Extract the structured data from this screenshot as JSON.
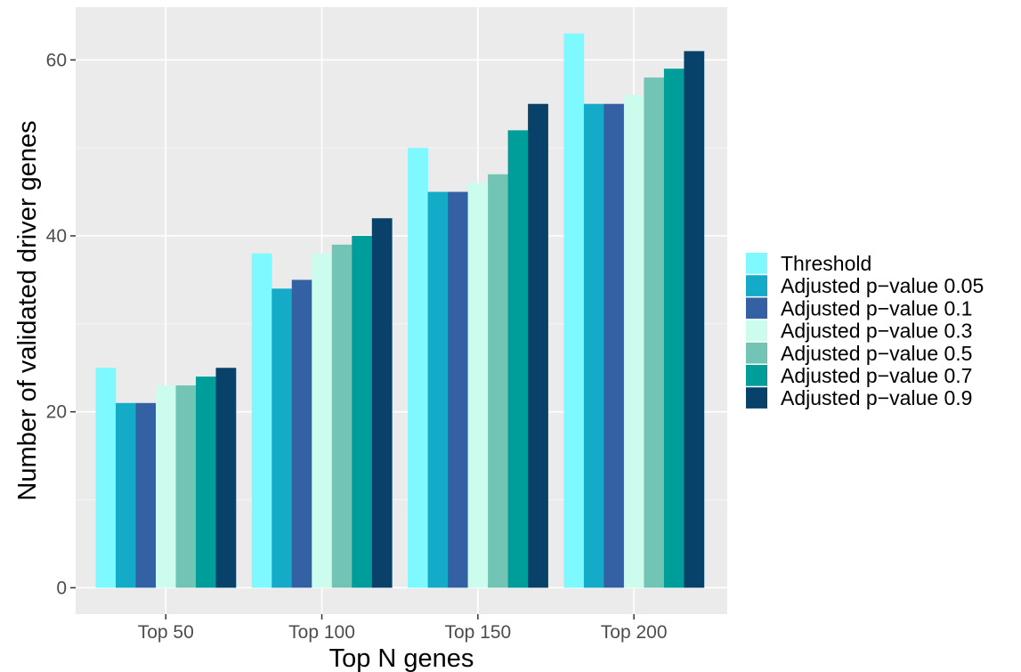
{
  "chart_data": {
    "type": "bar",
    "categories": [
      "Top 50",
      "Top 100",
      "Top 150",
      "Top 200"
    ],
    "series": [
      {
        "name": "Threshold",
        "color": "#7df9ff",
        "values": [
          25,
          38,
          50,
          63
        ]
      },
      {
        "name": "Adjusted p−value 0.05",
        "color": "#13abc8",
        "values": [
          21,
          34,
          45,
          55
        ]
      },
      {
        "name": "Adjusted p−value 0.1",
        "color": "#3361a3",
        "values": [
          21,
          35,
          45,
          55
        ]
      },
      {
        "name": "Adjusted p−value 0.3",
        "color": "#cbfcee",
        "values": [
          23,
          38,
          46,
          56
        ]
      },
      {
        "name": "Adjusted p−value 0.5",
        "color": "#72c5b5",
        "values": [
          23,
          39,
          47,
          58
        ]
      },
      {
        "name": "Adjusted p−value 0.7",
        "color": "#009e9a",
        "values": [
          24,
          40,
          52,
          59
        ]
      },
      {
        "name": "Adjusted p−value 0.9",
        "color": "#08426a",
        "values": [
          25,
          42,
          55,
          61
        ]
      }
    ],
    "xlabel": "Top N genes",
    "ylabel": "Number of validated driver genes",
    "ylim": [
      -3,
      66
    ],
    "yticks": [
      0,
      20,
      40,
      60
    ],
    "grid": true,
    "legend_position": "right",
    "panel_background": "#ebebeb"
  }
}
